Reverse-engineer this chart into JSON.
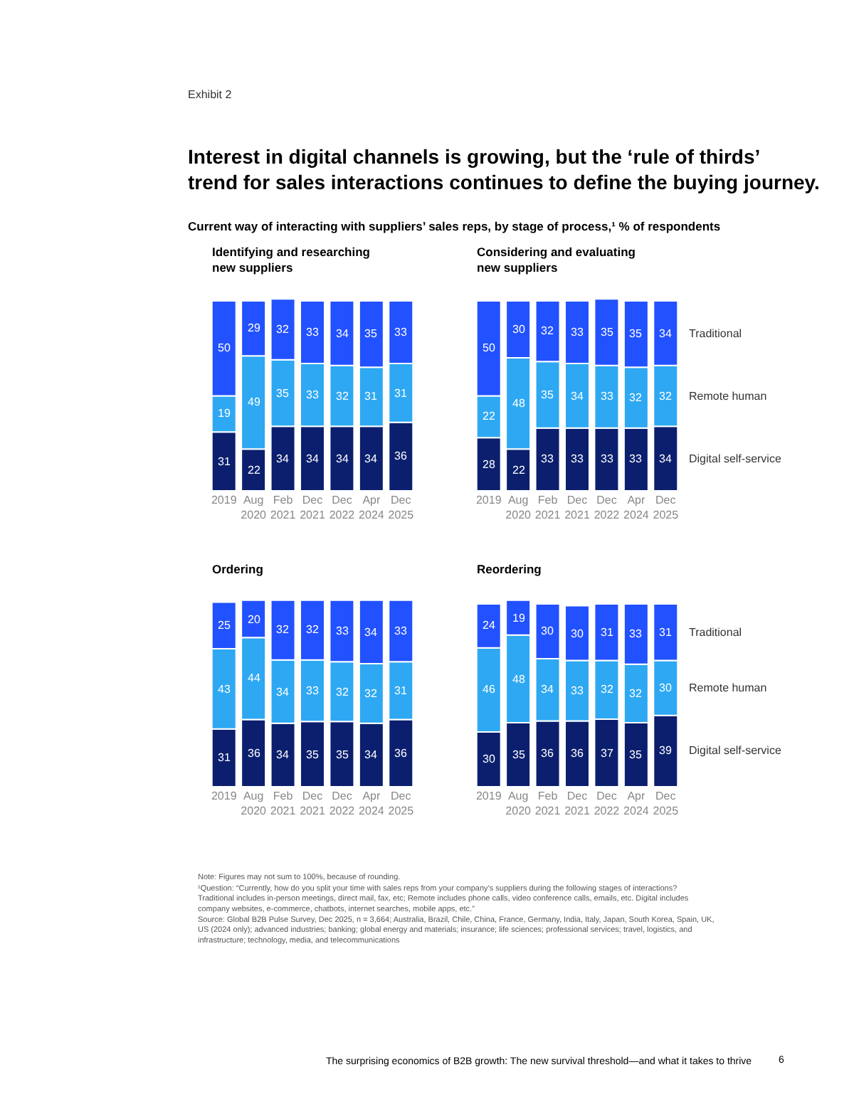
{
  "chart_data": [
    {
      "type": "bar",
      "stacked": true,
      "data_labels": true,
      "tick_labels": "x",
      "title": "Identifying and researching new suppliers",
      "annotations": [
        "Exhibit 2",
        "Interest in digital channels is growing, but the ‘rule of thirds’ trend for sales interactions continues to define the buying journey.",
        "Current way of interacting with suppliers’ sales reps, by stage of process,¹ % of respondents"
      ],
      "categories": [
        "2019",
        "Aug 2020",
        "Feb 2021",
        "Dec 2021",
        "Dec 2022",
        "Apr 2024",
        "Dec 2025"
      ],
      "series": [
        {
          "color": "#0b1f6e",
          "values": [
            31,
            22,
            34,
            34,
            34,
            34,
            36
          ]
        },
        {
          "color": "#2ea8f2",
          "values": [
            19,
            49,
            35,
            33,
            32,
            31,
            31
          ]
        },
        {
          "color": "#2251ff",
          "values": [
            50,
            29,
            32,
            33,
            34,
            35,
            33
          ]
        }
      ]
    },
    {
      "type": "bar",
      "stacked": true,
      "data_labels": true,
      "tick_labels": "x",
      "title": "Considering and evaluating new suppliers",
      "categories": [
        "2019",
        "Aug 2020",
        "Feb 2021",
        "Dec 2021",
        "Dec 2022",
        "Apr 2024",
        "Dec 2025"
      ],
      "series": [
        {
          "name": "Digital self-service",
          "color": "#0b1f6e",
          "values": [
            28,
            22,
            33,
            33,
            33,
            33,
            34
          ]
        },
        {
          "name": "Remote human",
          "color": "#2ea8f2",
          "values": [
            22,
            48,
            35,
            34,
            33,
            32,
            32
          ]
        },
        {
          "name": "Traditional",
          "color": "#2251ff",
          "values": [
            50,
            30,
            32,
            33,
            35,
            35,
            34
          ]
        }
      ]
    },
    {
      "type": "bar",
      "stacked": true,
      "data_labels": true,
      "tick_labels": "x",
      "title": "Ordering",
      "categories": [
        "2019",
        "Aug 2020",
        "Feb 2021",
        "Dec 2021",
        "Dec 2022",
        "Apr 2024",
        "Dec 2025"
      ],
      "series": [
        {
          "color": "#0b1f6e",
          "values": [
            31,
            36,
            34,
            35,
            35,
            34,
            36
          ]
        },
        {
          "color": "#2ea8f2",
          "values": [
            43,
            44,
            34,
            33,
            32,
            32,
            31
          ]
        },
        {
          "color": "#2251ff",
          "values": [
            25,
            20,
            32,
            32,
            33,
            34,
            33
          ]
        }
      ]
    },
    {
      "type": "bar",
      "stacked": true,
      "data_labels": true,
      "tick_labels": "x",
      "title": "Reordering",
      "annotations": [
        "Note: Figures may not sum to 100%, because of rounding.",
        "¹Question: “Currently, how do you split your time with sales reps from your company’s suppliers during the following stages of interactions? Traditional includes in-person meetings, direct mail, fax, etc; Remote includes phone calls, video conference calls, emails, etc. Digital includes company websites, e-commerce, chatbots, internet searches, mobile apps, etc.”",
        "Source: Global B2B Pulse Survey, Dec 2025, n = 3,664; Australia, Brazil, Chile, China, France, Germany, India, Italy, Japan, South Korea, Spain, UK, US (2024 only); advanced industries; banking; global energy and materials; insurance; life sciences; professional services; travel, logistics, and infrastructure; technology, media, and telecommunications",
        "The surprising economics of B2B growth: The new survival threshold—and what it takes to thrive",
        "6"
      ],
      "categories": [
        "2019",
        "Aug 2020",
        "Feb 2021",
        "Dec 2021",
        "Dec 2022",
        "Apr 2024",
        "Dec 2025"
      ],
      "series": [
        {
          "name": "Digital self-service",
          "color": "#0b1f6e",
          "values": [
            30,
            35,
            36,
            36,
            37,
            35,
            39
          ]
        },
        {
          "name": "Remote human",
          "color": "#2ea8f2",
          "values": [
            46,
            48,
            34,
            33,
            32,
            32,
            30
          ]
        },
        {
          "name": "Traditional",
          "color": "#2251ff",
          "values": [
            24,
            19,
            30,
            30,
            31,
            33,
            31
          ]
        }
      ]
    }
  ]
}
